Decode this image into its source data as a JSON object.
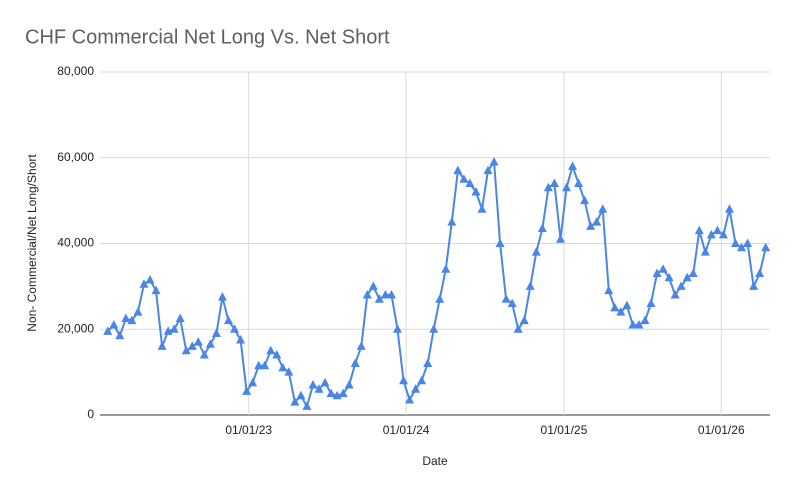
{
  "chart_data": {
    "type": "line",
    "title": "CHF Commercial Net Long Vs. Net Short",
    "x_label": "Date",
    "y_label": "Non- Commercial/Net Long/Short",
    "x": [
      "2022-02-08",
      "2022-02-22",
      "2022-03-08",
      "2022-03-22",
      "2022-04-05",
      "2022-04-19",
      "2022-05-03",
      "2022-05-17",
      "2022-05-31",
      "2022-06-14",
      "2022-06-28",
      "2022-07-12",
      "2022-07-26",
      "2022-08-09",
      "2022-08-23",
      "2022-09-06",
      "2022-09-20",
      "2022-10-04",
      "2022-10-18",
      "2022-11-01",
      "2022-11-15",
      "2022-11-29",
      "2022-12-13",
      "2022-12-27",
      "2023-01-10",
      "2023-01-24",
      "2023-02-07",
      "2023-02-21",
      "2023-03-07",
      "2023-03-21",
      "2023-04-04",
      "2023-04-18",
      "2023-05-02",
      "2023-05-16",
      "2023-05-30",
      "2023-06-13",
      "2023-06-27",
      "2023-07-11",
      "2023-07-25",
      "2023-08-08",
      "2023-08-22",
      "2023-09-05",
      "2023-09-19",
      "2023-10-03",
      "2023-10-17",
      "2023-10-31",
      "2023-11-14",
      "2023-11-28",
      "2023-12-12",
      "2023-12-26",
      "2024-01-09",
      "2024-01-23",
      "2024-02-06",
      "2024-02-20",
      "2024-03-05",
      "2024-03-19",
      "2024-04-02",
      "2024-04-16",
      "2024-04-30",
      "2024-05-14",
      "2024-05-28",
      "2024-06-11",
      "2024-06-25",
      "2024-07-09",
      "2024-07-23",
      "2024-08-06",
      "2024-08-20",
      "2024-09-03",
      "2024-09-17",
      "2024-10-01",
      "2024-10-15",
      "2024-10-29",
      "2024-11-12",
      "2024-11-26",
      "2024-12-10",
      "2024-12-24",
      "2025-01-07",
      "2025-01-21",
      "2025-02-04",
      "2025-02-18",
      "2025-03-04",
      "2025-03-18",
      "2025-04-01",
      "2025-04-15",
      "2025-04-29",
      "2025-05-13",
      "2025-05-27",
      "2025-06-10",
      "2025-06-24",
      "2025-07-08",
      "2025-07-22",
      "2025-08-05",
      "2025-08-19",
      "2025-09-02",
      "2025-09-16",
      "2025-09-30",
      "2025-10-14",
      "2025-10-28",
      "2025-11-11",
      "2025-11-25",
      "2025-12-09",
      "2025-12-23",
      "2026-01-06",
      "2026-01-20",
      "2026-02-03",
      "2026-02-17",
      "2026-03-03",
      "2026-03-17",
      "2026-03-31",
      "2026-04-14"
    ],
    "series": [
      {
        "name": "CHF",
        "color": "#4a86e8",
        "values": [
          19500,
          21000,
          18500,
          22500,
          22000,
          24000,
          30500,
          31500,
          29000,
          16000,
          19500,
          20000,
          22500,
          15000,
          16000,
          17000,
          14000,
          16500,
          19000,
          27500,
          22000,
          20000,
          17500,
          5500,
          7500,
          11500,
          11500,
          15000,
          14000,
          11000,
          10000,
          3000,
          4500,
          2000,
          7000,
          6000,
          7500,
          5000,
          4500,
          5000,
          7000,
          12000,
          16000,
          28000,
          30000,
          27000,
          28000,
          28000,
          20000,
          8000,
          3500,
          6000,
          8000,
          12000,
          20000,
          27000,
          34000,
          45000,
          57000,
          55000,
          54000,
          52000,
          48000,
          57000,
          59000,
          40000,
          27000,
          26000,
          20000,
          22000,
          30000,
          38000,
          43500,
          53000,
          54000,
          41000,
          53000,
          58000,
          54000,
          50000,
          44000,
          45000,
          48000,
          29000,
          25000,
          24000,
          25500,
          21000,
          21000,
          22000,
          26000,
          33000,
          34000,
          32000,
          28000,
          30000,
          32000,
          33000,
          43000,
          38000,
          42000,
          43000,
          42000,
          48000,
          40000,
          39000,
          40000,
          30000,
          33000,
          39000
        ]
      }
    ],
    "xlim": [
      "2022-01-21",
      "2026-04-24"
    ],
    "xticks": [
      {
        "value": "2023-01-01",
        "label": "01/01/23"
      },
      {
        "value": "2024-01-01",
        "label": "01/01/24"
      },
      {
        "value": "2025-01-01",
        "label": "01/01/25"
      },
      {
        "value": "2026-01-01",
        "label": "01/01/26"
      }
    ],
    "ylim": [
      0,
      80000
    ],
    "yticks": [
      {
        "value": 0,
        "label": "0"
      },
      {
        "value": 20000,
        "label": "20,000"
      },
      {
        "value": 40000,
        "label": "40,000"
      },
      {
        "value": 60000,
        "label": "60,000"
      },
      {
        "value": 80000,
        "label": "80,000"
      }
    ],
    "grid": true
  }
}
